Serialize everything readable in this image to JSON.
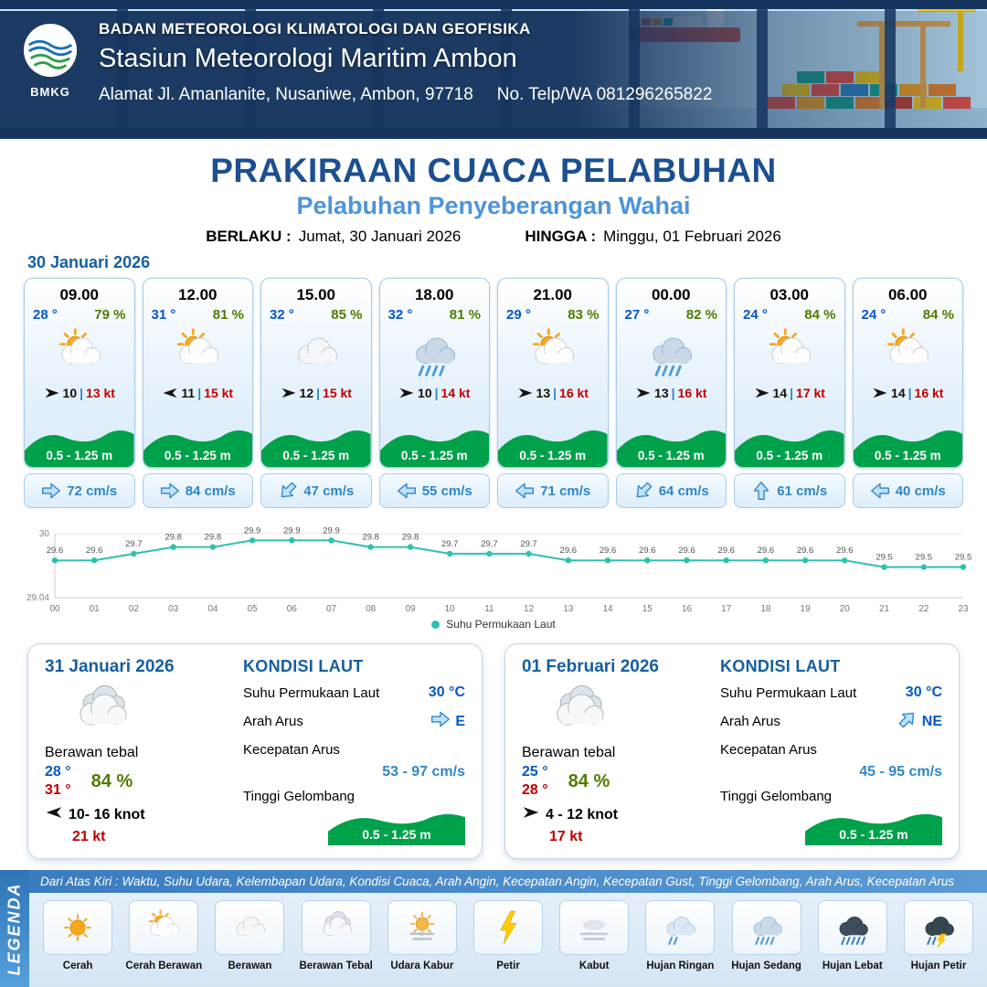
{
  "header": {
    "logo_text": "BMKG",
    "org": "BADAN METEOROLOGI KLIMATOLOGI DAN GEOFISIKA",
    "station": "Stasiun Meteorologi Maritim Ambon",
    "address": "Alamat Jl. Amanlanite, Nusaniwe, Ambon, 97718",
    "phone_label": "No. Telp/WA",
    "phone": "081296265822"
  },
  "title": {
    "main": "PRAKIRAAN CUACA PELABUHAN",
    "sub": "Pelabuhan Penyeberangan Wahai",
    "valid_label": "BERLAKU :",
    "valid_value": "Jumat, 30 Januari 2026",
    "until_label": "HINGGA :",
    "until_value": "Minggu, 01 Februari 2026"
  },
  "forecast_date": "30 Januari 2026",
  "misc": {
    "wind_sep": "|"
  },
  "forecast_cards": [
    {
      "time": "09.00",
      "temp": "28 °",
      "humidity": "79 %",
      "icon": "sun-cloud",
      "wind_dir": "E",
      "wind": "10",
      "gust": "13 kt",
      "wave": "0.5 - 1.25 m",
      "current_dir": "E",
      "current": "72 cm/s"
    },
    {
      "time": "12.00",
      "temp": "31 °",
      "humidity": "81 %",
      "icon": "sun-cloud",
      "wind_dir": "W",
      "wind": "11",
      "gust": "15 kt",
      "wave": "0.5 - 1.25 m",
      "current_dir": "E",
      "current": "84 cm/s"
    },
    {
      "time": "15.00",
      "temp": "32 °",
      "humidity": "85 %",
      "icon": "cloud",
      "wind_dir": "E",
      "wind": "12",
      "gust": "15 kt",
      "wave": "0.5 - 1.25 m",
      "current_dir": "SW",
      "current": "47 cm/s"
    },
    {
      "time": "18.00",
      "temp": "32 °",
      "humidity": "81 %",
      "icon": "rain-moderate",
      "wind_dir": "E",
      "wind": "10",
      "gust": "14 kt",
      "wave": "0.5 - 1.25 m",
      "current_dir": "W",
      "current": "55 cm/s"
    },
    {
      "time": "21.00",
      "temp": "29 °",
      "humidity": "83 %",
      "icon": "sun-cloud",
      "wind_dir": "E",
      "wind": "13",
      "gust": "16 kt",
      "wave": "0.5 - 1.25 m",
      "current_dir": "W",
      "current": "71 cm/s"
    },
    {
      "time": "00.00",
      "temp": "27 °",
      "humidity": "82 %",
      "icon": "rain-moderate",
      "wind_dir": "E",
      "wind": "13",
      "gust": "16 kt",
      "wave": "0.5 - 1.25 m",
      "current_dir": "SW",
      "current": "64 cm/s"
    },
    {
      "time": "03.00",
      "temp": "24 °",
      "humidity": "84 %",
      "icon": "sun-cloud",
      "wind_dir": "E",
      "wind": "14",
      "gust": "17 kt",
      "wave": "0.5 - 1.25 m",
      "current_dir": "N",
      "current": "61 cm/s"
    },
    {
      "time": "06.00",
      "temp": "24 °",
      "humidity": "84 %",
      "icon": "sun-cloud",
      "wind_dir": "E",
      "wind": "14",
      "gust": "16 kt",
      "wave": "0.5 - 1.25 m",
      "current_dir": "W",
      "current": "40 cm/s"
    }
  ],
  "chart_data": {
    "type": "line",
    "title": "",
    "xlabel": "",
    "ylabel": "",
    "series_name": "Suhu Permukaan Laut",
    "x": [
      "00",
      "01",
      "02",
      "03",
      "04",
      "05",
      "06",
      "07",
      "08",
      "09",
      "10",
      "11",
      "12",
      "13",
      "14",
      "15",
      "16",
      "17",
      "18",
      "19",
      "20",
      "21",
      "22",
      "23"
    ],
    "values": [
      29.6,
      29.6,
      29.7,
      29.8,
      29.8,
      29.9,
      29.9,
      29.9,
      29.8,
      29.8,
      29.7,
      29.7,
      29.7,
      29.6,
      29.6,
      29.6,
      29.6,
      29.6,
      29.6,
      29.6,
      29.6,
      29.5,
      29.5,
      29.5
    ],
    "ylim": [
      29.04,
      30
    ],
    "ytick_labels": [
      "29.04",
      "30"
    ],
    "line_color": "#2fc0ae",
    "grid": false,
    "legend_position": "bottom"
  },
  "daily": [
    {
      "date": "31 Januari 2026",
      "icon": "cloud-thick",
      "condition": "Berawan tebal",
      "temp_min": "28 °",
      "temp_max": "31 °",
      "humidity": "84 %",
      "wind_dir": "W",
      "wind_range": "10- 16 knot",
      "gust": "21 kt",
      "sea_title": "KONDISI LAUT",
      "sst_label": "Suhu Permukaan Laut",
      "sst_value": "30 °C",
      "current_dir_label": "Arah Arus",
      "current_dir": "E",
      "current_speed_label": "Kecepatan Arus",
      "current_speed": "53 - 97 cm/s",
      "wave_label": "Tinggi Gelombang",
      "wave_value": "0.5 - 1.25 m"
    },
    {
      "date": "01 Februari 2026",
      "icon": "cloud-thick",
      "condition": "Berawan tebal",
      "temp_min": "25 °",
      "temp_max": "28 °",
      "humidity": "84 %",
      "wind_dir": "E",
      "wind_range": "4 - 12 knot",
      "gust": "17 kt",
      "sea_title": "KONDISI LAUT",
      "sst_label": "Suhu Permukaan Laut",
      "sst_value": "30 °C",
      "current_dir_label": "Arah Arus",
      "current_dir": "NE",
      "current_speed_label": "Kecepatan Arus",
      "current_speed": "45 - 95 cm/s",
      "wave_label": "Tinggi Gelombang",
      "wave_value": "0.5 - 1.25 m"
    }
  ],
  "legend": {
    "title": "LEGENDA",
    "note": "Dari Atas Kiri : Waktu, Suhu Udara, Kelembapan Udara, Kondisi Cuaca, Arah Angin, Kecepatan Angin, Kecepatan Gust, Tinggi Gelombang, Arah Arus, Kecepatan Arus",
    "items": [
      {
        "label": "Cerah",
        "icon": "sun"
      },
      {
        "label": "Cerah Berawan",
        "icon": "sun-cloud"
      },
      {
        "label": "Berawan",
        "icon": "cloud"
      },
      {
        "label": "Berawan Tebal",
        "icon": "cloud-thick"
      },
      {
        "label": "Udara Kabur",
        "icon": "haze"
      },
      {
        "label": "Petir",
        "icon": "lightning"
      },
      {
        "label": "Kabut",
        "icon": "fog"
      },
      {
        "label": "Hujan Ringan",
        "icon": "rain-light"
      },
      {
        "label": "Hujan Sedang",
        "icon": "rain-moderate"
      },
      {
        "label": "Hujan Lebat",
        "icon": "rain-heavy"
      },
      {
        "label": "Hujan Petir",
        "icon": "thunderstorm"
      }
    ]
  },
  "colors": {
    "navy": "#16355e",
    "title_blue": "#1b4f91",
    "sub_blue": "#4e94d8",
    "temp_blue": "#0557c6",
    "humidity_green": "#4e7c00",
    "gust_red": "#c00000",
    "wave_green": "#00a14b",
    "current_blue": "#2e86c8",
    "chart_teal": "#2fc0ae",
    "legend_bar_blue": "#3a7cc0"
  }
}
